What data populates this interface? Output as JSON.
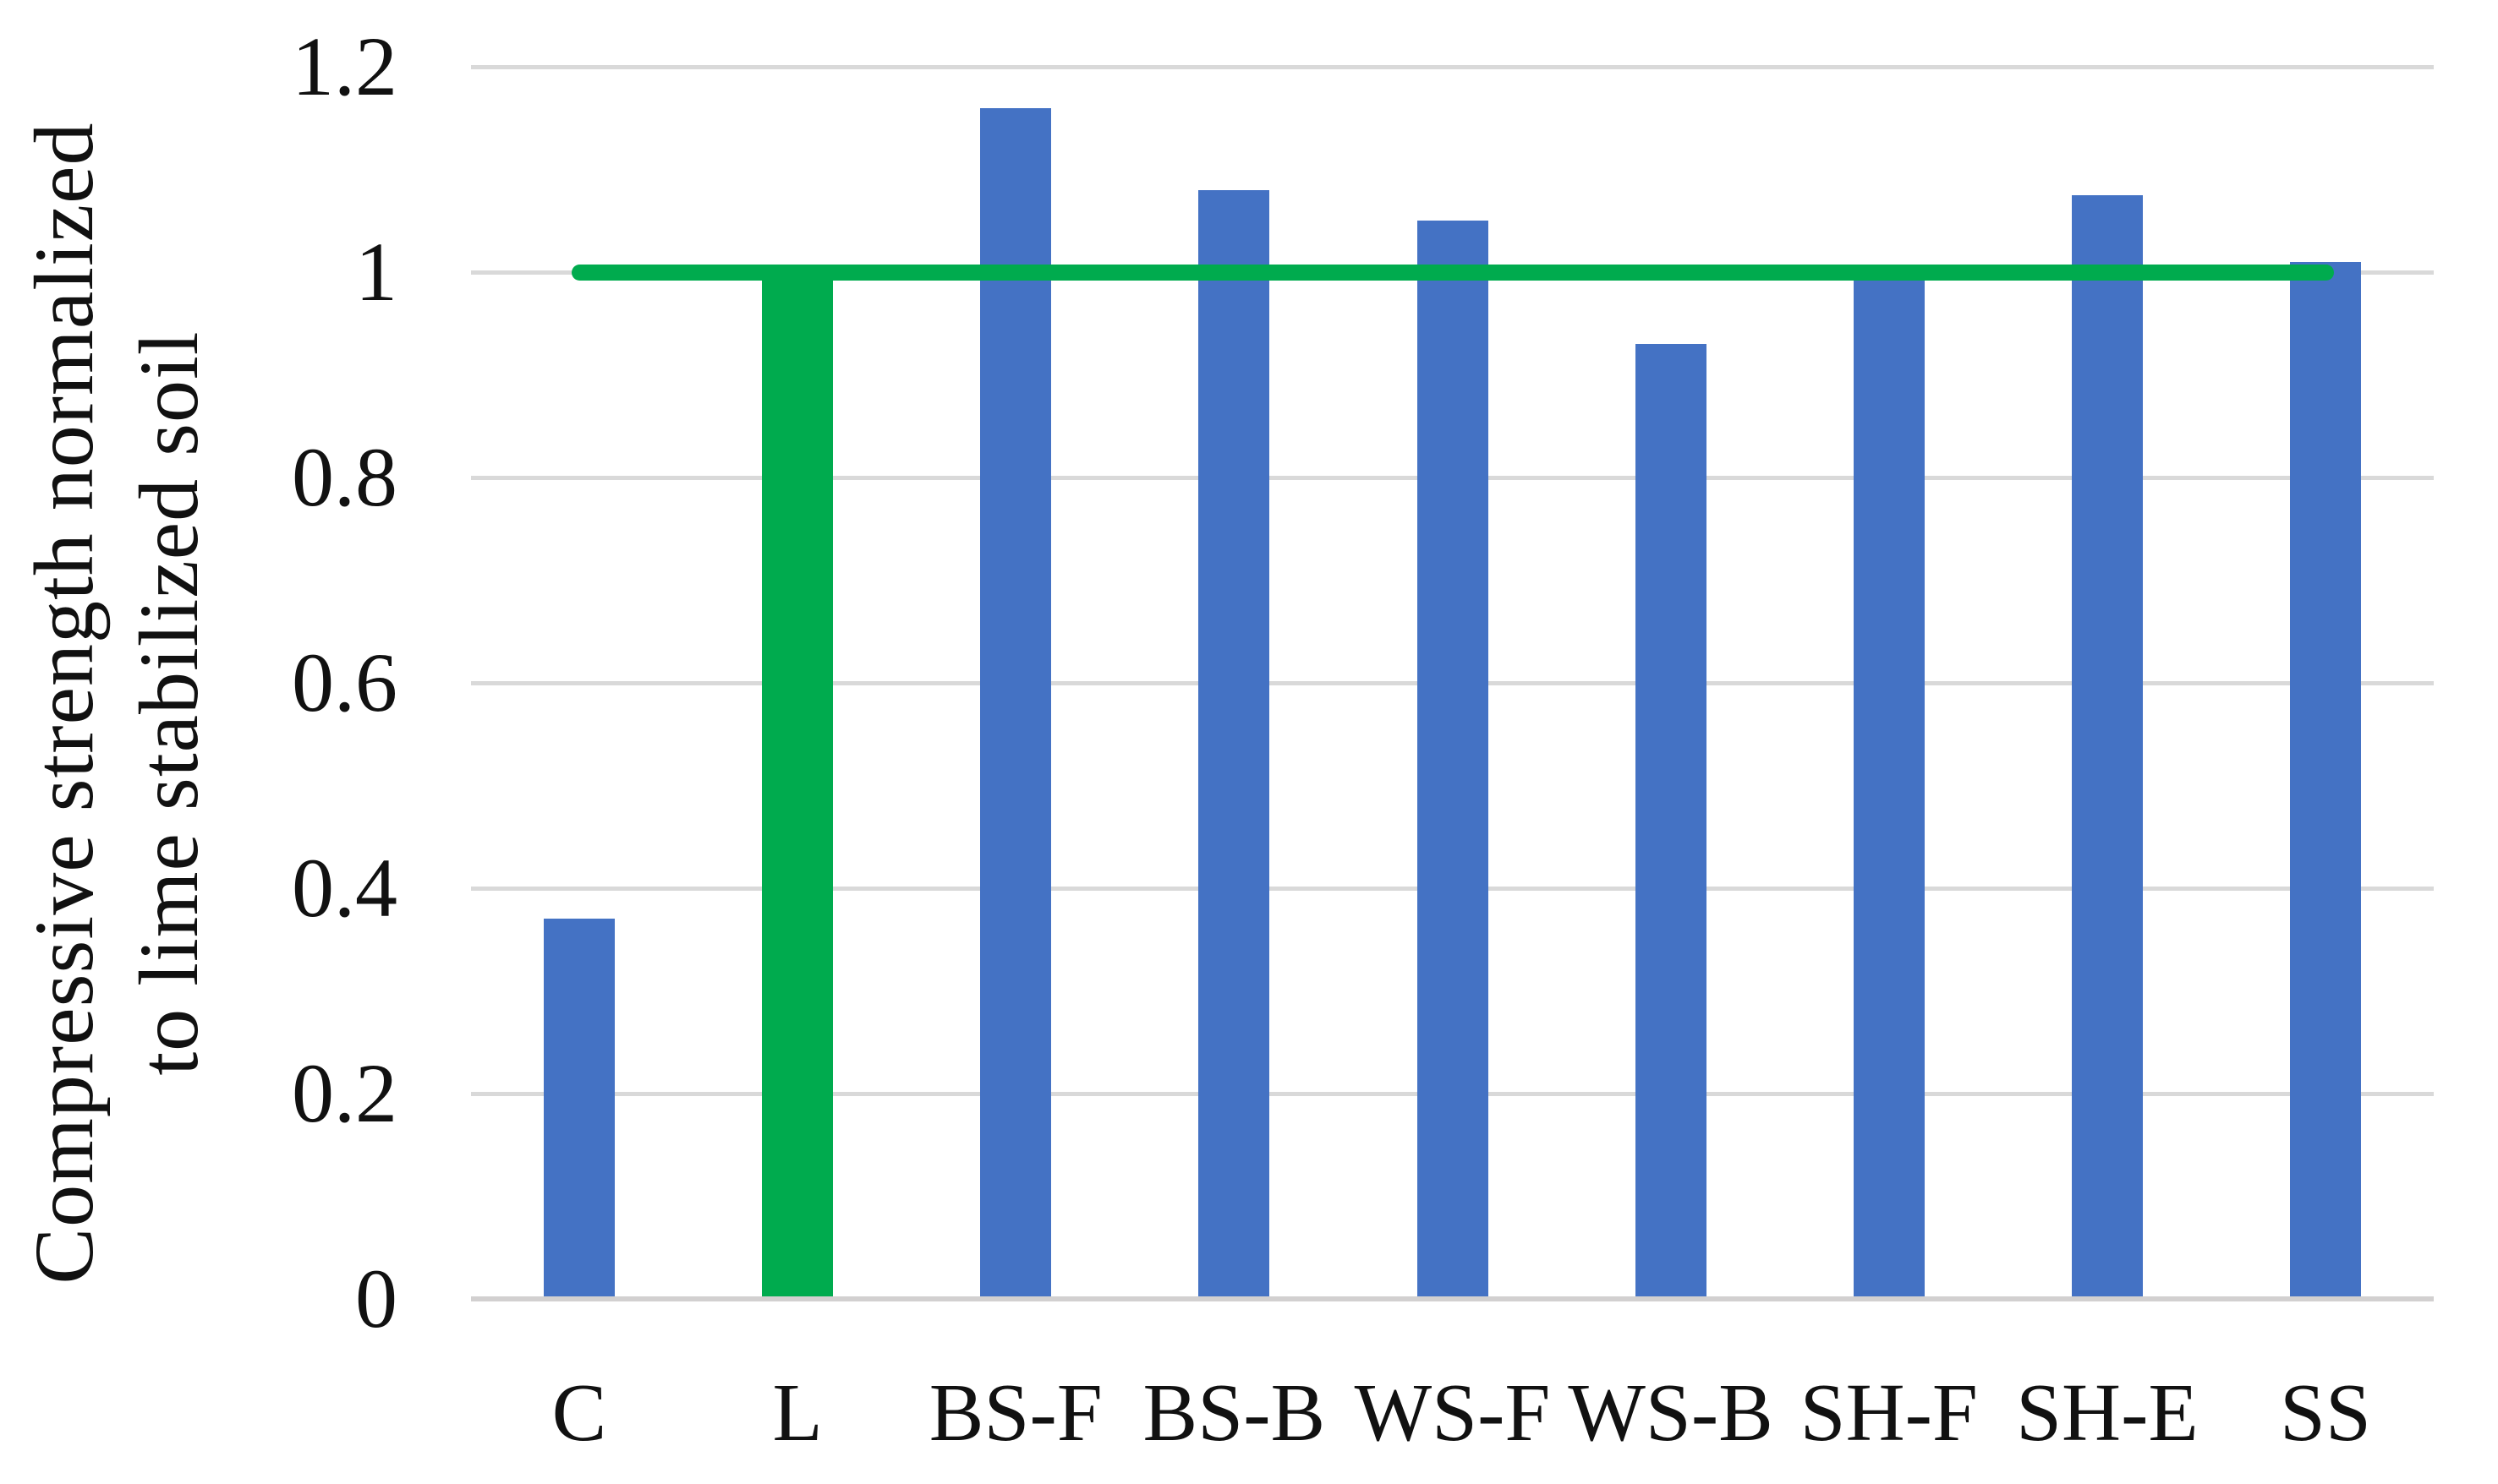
{
  "figure": {
    "background": "#FFFFFF"
  },
  "colors": {
    "bar_blue": "#4472C4",
    "bar_green": "#00AB4E",
    "reference_line_green": "#00AB4E",
    "gridline": "#D9D9D9",
    "axis_line": "#D2D0D0",
    "text": "#111111"
  },
  "chart_data": {
    "type": "bar",
    "title": "",
    "xlabel": "",
    "ylabel": "Compressive strength normalized\nto lime stabilized soil",
    "categories": [
      "C",
      "L",
      "BS-F",
      "BS-B",
      "WS-F",
      "WS-B",
      "SH-F",
      "SH-E",
      "SS"
    ],
    "series": [
      {
        "name": "Compressive strength normalized to lime stabilized soil",
        "type": "bar",
        "values": [
          0.37,
          1.0,
          1.16,
          1.08,
          1.05,
          0.93,
          1.0,
          1.075,
          1.01
        ],
        "point_colors": [
          "#4472C4",
          "#00AB4E",
          "#4472C4",
          "#4472C4",
          "#4472C4",
          "#4472C4",
          "#4472C4",
          "#4472C4",
          "#4472C4"
        ]
      },
      {
        "name": "Lime stabilized soil reference",
        "type": "line",
        "value": 1.0,
        "color": "#00AB4E",
        "from_category": "C",
        "to_category": "SS"
      }
    ],
    "ylim": [
      0,
      1.2
    ],
    "yticks": [
      {
        "label": "1.2",
        "value": 1.2
      },
      {
        "label": "1",
        "value": 1.0
      },
      {
        "label": "0.8",
        "value": 0.8
      },
      {
        "label": "0.6",
        "value": 0.6
      },
      {
        "label": "0.4",
        "value": 0.4
      },
      {
        "label": "0.2",
        "value": 0.2
      },
      {
        "label": "0",
        "value": 0.0
      }
    ],
    "grid": true,
    "legend": "none"
  }
}
